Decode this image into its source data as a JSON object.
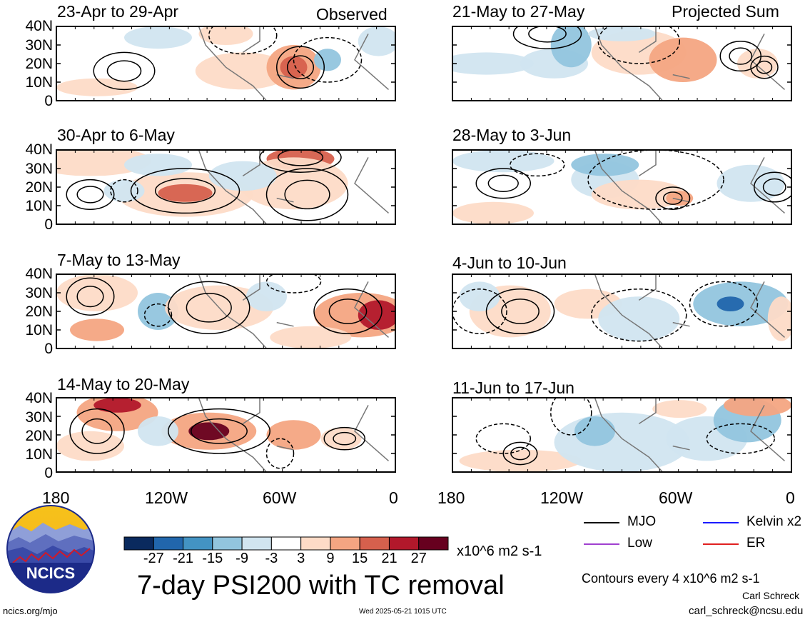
{
  "header": {
    "observed_label": "Observed",
    "projected_label": "Projected Sum"
  },
  "panels": {
    "observed": [
      {
        "title": "23-Apr to 29-Apr"
      },
      {
        "title": "30-Apr to 6-May"
      },
      {
        "title": "7-May to 13-May"
      },
      {
        "title": "14-May to 20-May"
      }
    ],
    "projected": [
      {
        "title": "21-May to 27-May"
      },
      {
        "title": "28-May to 3-Jun"
      },
      {
        "title": "4-Jun to 10-Jun"
      },
      {
        "title": "11-Jun to 17-Jun"
      }
    ]
  },
  "axes": {
    "lat_labels": [
      "40N",
      "30N",
      "20N",
      "10N",
      "0"
    ],
    "lon_labels": [
      "180",
      "120W",
      "60W",
      "0"
    ]
  },
  "colorbar": {
    "tick_labels": [
      "-27",
      "-21",
      "-15",
      "-9",
      "-3",
      "3",
      "9",
      "15",
      "21",
      "27"
    ],
    "colors": [
      "#0a2a5e",
      "#2166ac",
      "#4393c3",
      "#92c5de",
      "#d1e5f0",
      "#ffffff",
      "#fddbc7",
      "#f4a582",
      "#d6604d",
      "#b2182b",
      "#67001f"
    ],
    "units": "x10^6 m2 s-1"
  },
  "title": "7-day PSI200 with TC removal",
  "legend": {
    "items": [
      {
        "label": "MJO",
        "color": "#000000"
      },
      {
        "label": "Kelvin x2",
        "color": "#1a1aff"
      },
      {
        "label": "Low",
        "color": "#a040d0"
      },
      {
        "label": "ER",
        "color": "#e02020"
      }
    ],
    "contour_note": "Contours every 4 x10^6 m2 s-1"
  },
  "logo": {
    "text": "NCICS"
  },
  "footer": {
    "url": "ncics.org/mjo",
    "timestamp": "Wed 2025-05-21 1015 UTC",
    "author": "Carl Schreck",
    "email": "carl_schreck@ncsu.edu"
  }
}
